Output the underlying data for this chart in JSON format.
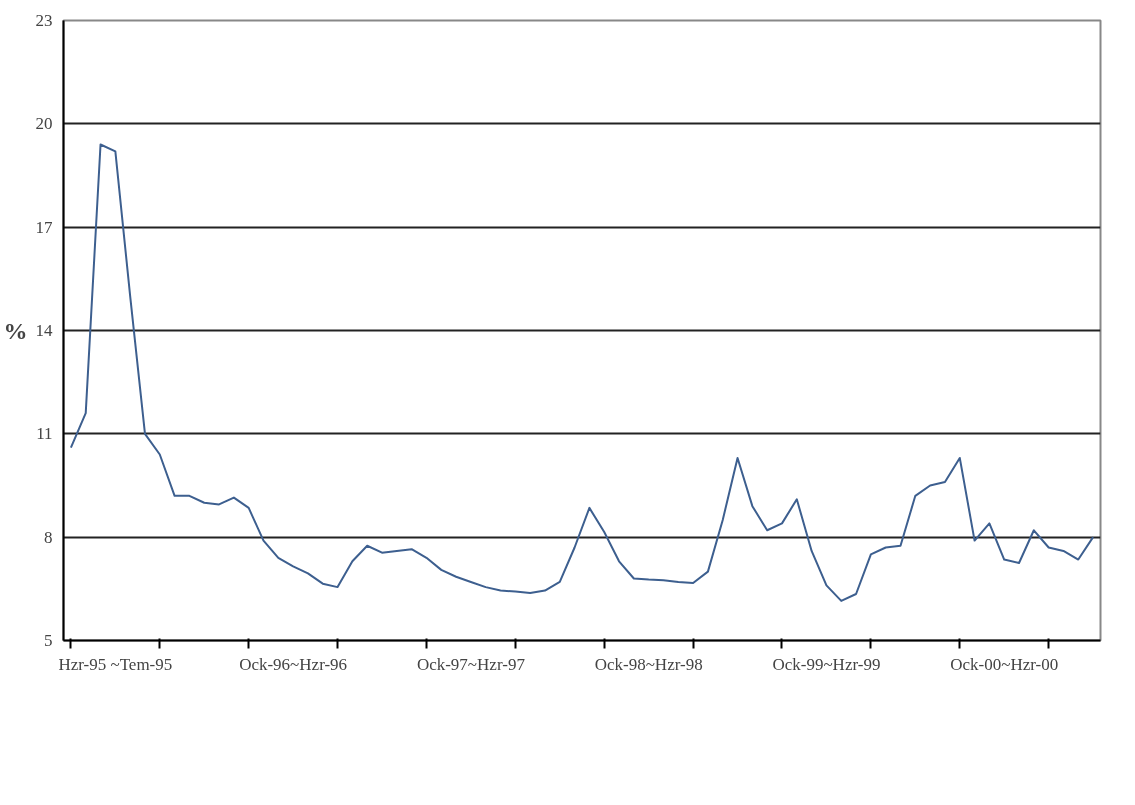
{
  "chart_data": {
    "type": "line",
    "ylabel": "%",
    "categories": [
      null,
      null,
      null,
      "Hzr-95 ~Tem-95",
      null,
      null,
      null,
      null,
      null,
      null,
      null,
      null,
      null,
      null,
      null,
      "Ock-96~Hzr-96",
      null,
      null,
      null,
      null,
      null,
      null,
      null,
      null,
      null,
      null,
      null,
      "Ock-97~Hzr-97",
      null,
      null,
      null,
      null,
      null,
      null,
      null,
      null,
      null,
      null,
      null,
      "Ock-98~Hzr-98",
      null,
      null,
      null,
      null,
      null,
      null,
      null,
      null,
      null,
      null,
      null,
      "Ock-99~Hzr-99",
      null,
      null,
      null,
      null,
      null,
      null,
      null,
      null,
      null,
      null,
      null,
      "Ock-00~Hzr-00",
      null,
      null,
      null,
      null,
      null,
      null
    ],
    "series": [
      {
        "color": "#3d5f8f",
        "values": [
          10.6,
          11.6,
          19.4,
          19.2,
          15.0,
          11.0,
          10.4,
          9.2,
          9.2,
          9.0,
          8.95,
          9.15,
          8.85,
          7.9,
          7.4,
          7.15,
          6.95,
          6.65,
          6.55,
          7.3,
          7.75,
          7.55,
          7.6,
          7.65,
          7.4,
          7.05,
          6.85,
          6.7,
          6.55,
          6.45,
          6.42,
          6.38,
          6.45,
          6.7,
          7.7,
          8.85,
          8.15,
          7.3,
          6.8,
          6.77,
          6.75,
          6.7,
          6.67,
          7.0,
          8.5,
          10.3,
          8.9,
          8.2,
          8.4,
          9.1,
          7.6,
          6.6,
          6.15,
          6.35,
          7.5,
          7.7,
          7.75,
          9.2,
          9.5,
          9.6,
          10.3,
          7.9,
          8.4,
          7.35,
          7.25,
          8.2,
          7.7,
          7.6,
          7.35,
          8.0
        ]
      }
    ],
    "ylim": [
      5,
      23
    ],
    "yticks": [
      5,
      8,
      11,
      14,
      17,
      20,
      23
    ],
    "grid": "y",
    "line_style": "solid",
    "marker": "none"
  }
}
